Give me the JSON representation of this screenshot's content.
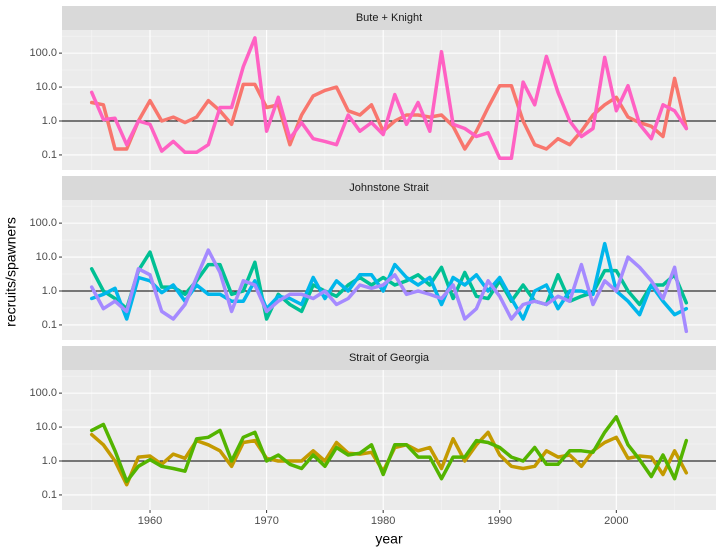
{
  "chart_data": {
    "type": "line",
    "xlabel": "year",
    "ylabel": "recruits/spawners",
    "log_y": true,
    "grid": true,
    "hline": 1,
    "xlim": [
      1952.45,
      2008.55
    ],
    "xticks": [
      1960,
      1970,
      1980,
      1990,
      2000
    ],
    "ylim": [
      0.036,
      480
    ],
    "yticks": [
      {
        "value": 100,
        "label": "100.0"
      },
      {
        "value": 10,
        "label": "10.0"
      },
      {
        "value": 1,
        "label": "1.0"
      },
      0.1
    ],
    "x": [
      1955,
      1956,
      1957,
      1958,
      1959,
      1960,
      1961,
      1962,
      1963,
      1964,
      1965,
      1966,
      1967,
      1968,
      1969,
      1970,
      1971,
      1972,
      1973,
      1974,
      1975,
      1976,
      1977,
      1978,
      1979,
      1980,
      1981,
      1982,
      1983,
      1984,
      1985,
      1986,
      1987,
      1988,
      1989,
      1990,
      1991,
      1992,
      1993,
      1994,
      1995,
      1996,
      1997,
      1998,
      1999,
      2000,
      2001,
      2002,
      2003,
      2004,
      2005,
      2006
    ],
    "facets": [
      {
        "title": "Bute + Knight",
        "series": [
          {
            "color": "#F8766D",
            "values": [
              3.5,
              3,
              0.15,
              0.15,
              1,
              4,
              1,
              1.3,
              0.9,
              1.3,
              4,
              2,
              0.8,
              12,
              12,
              2.5,
              3,
              0.2,
              1.5,
              5.5,
              8,
              10,
              2,
              1.5,
              3,
              0.5,
              1,
              1.5,
              1.5,
              1.3,
              1.5,
              0.7,
              0.15,
              0.5,
              2.5,
              11,
              11,
              1,
              0.2,
              0.15,
              0.3,
              0.2,
              0.5,
              1.5,
              3,
              5,
              1.3,
              0.9,
              0.7,
              0.35,
              18,
              0.6
            ]
          },
          {
            "color": "#FF61C3",
            "values": [
              7,
              1.1,
              1.2,
              0.2,
              1,
              0.8,
              0.13,
              0.25,
              0.12,
              0.12,
              0.2,
              2.5,
              2.5,
              40,
              280,
              0.5,
              5,
              0.3,
              0.9,
              0.3,
              0.25,
              0.2,
              1.5,
              0.5,
              0.9,
              0.4,
              6,
              0.8,
              3.5,
              0.5,
              110,
              0.8,
              0.6,
              0.35,
              0.45,
              0.08,
              0.08,
              14,
              3,
              80,
              7,
              1,
              0.35,
              0.6,
              75,
              2,
              11,
              0.8,
              0.3,
              3,
              2,
              0.6
            ]
          }
        ]
      },
      {
        "title": "Johnstone Strait",
        "series": [
          {
            "color": "#00C094",
            "values": [
              4.5,
              1,
              0.6,
              0.3,
              4,
              14,
              1.3,
              1.3,
              0.8,
              2,
              6,
              6,
              0.8,
              1,
              7,
              0.15,
              0.8,
              0.4,
              0.25,
              1.5,
              1,
              0.7,
              1.5,
              2.5,
              1.5,
              2.5,
              1.5,
              2,
              3,
              1.5,
              5,
              0.6,
              3.5,
              0.7,
              0.6,
              2,
              0.5,
              1.5,
              0.5,
              0.4,
              3,
              0.5,
              0.7,
              0.9,
              4,
              4,
              1,
              0.4,
              1.5,
              1.5,
              3,
              0.45
            ]
          },
          {
            "color": "#00B6EB",
            "values": [
              0.6,
              0.8,
              1.2,
              0.15,
              2.5,
              2,
              0.9,
              1.5,
              0.5,
              1.5,
              0.8,
              0.8,
              0.5,
              0.5,
              2,
              0.3,
              0.7,
              0.6,
              0.4,
              2.5,
              0.6,
              2,
              1,
              3,
              3,
              1,
              6,
              2.5,
              1.5,
              2.5,
              0.4,
              2.5,
              1.5,
              3,
              1,
              2.5,
              0.6,
              0.15,
              1,
              1.5,
              0.3,
              1,
              1,
              0.8,
              25,
              1,
              0.5,
              0.2,
              1.5,
              0.5,
              0.2,
              0.3
            ]
          },
          {
            "color": "#A58AFF",
            "values": [
              1.3,
              0.3,
              0.5,
              0.25,
              4.5,
              3,
              0.25,
              0.15,
              0.4,
              2.5,
              16,
              3.5,
              0.25,
              2,
              1.5,
              0.25,
              0.5,
              0.8,
              0.8,
              0.6,
              1,
              0.4,
              0.6,
              1.5,
              1.2,
              1.5,
              3,
              0.8,
              1,
              0.8,
              0.6,
              1.5,
              0.15,
              0.3,
              2,
              0.7,
              0.15,
              0.4,
              0.5,
              0.4,
              0.7,
              0.5,
              6,
              0.4,
              2,
              1,
              10,
              5,
              2,
              0.6,
              5,
              0.065
            ]
          }
        ]
      },
      {
        "title": "Strait of Georgia",
        "series": [
          {
            "color": "#C49A00",
            "values": [
              6,
              3,
              1,
              0.2,
              1.3,
              1.4,
              0.8,
              1.6,
              1.2,
              4,
              3,
              2,
              0.7,
              3.5,
              4,
              1.2,
              1,
              1,
              1,
              2,
              1,
              3.5,
              1.7,
              1.6,
              1.8,
              0.5,
              2.5,
              3,
              2,
              2.5,
              0.6,
              4.5,
              1,
              3,
              7,
              1.5,
              0.7,
              0.6,
              0.7,
              2,
              1.3,
              1.5,
              0.7,
              2,
              3.5,
              5,
              1.2,
              1.4,
              1.3,
              0.4,
              2,
              0.45
            ]
          },
          {
            "color": "#53B400",
            "values": [
              8,
              12,
              2,
              0.25,
              0.7,
              1.1,
              0.7,
              0.6,
              0.5,
              4.5,
              5,
              8,
              1,
              5,
              7,
              1,
              1.5,
              0.8,
              0.6,
              1.5,
              0.7,
              2.5,
              1.5,
              1.7,
              3,
              0.4,
              3,
              3,
              1.3,
              1.3,
              0.3,
              1.3,
              1.3,
              4,
              3.5,
              2.5,
              1.3,
              1,
              2.5,
              0.8,
              0.8,
              2,
              2,
              1.8,
              7,
              20,
              3,
              1.1,
              0.35,
              1.5,
              0.3,
              4
            ]
          }
        ]
      }
    ]
  }
}
